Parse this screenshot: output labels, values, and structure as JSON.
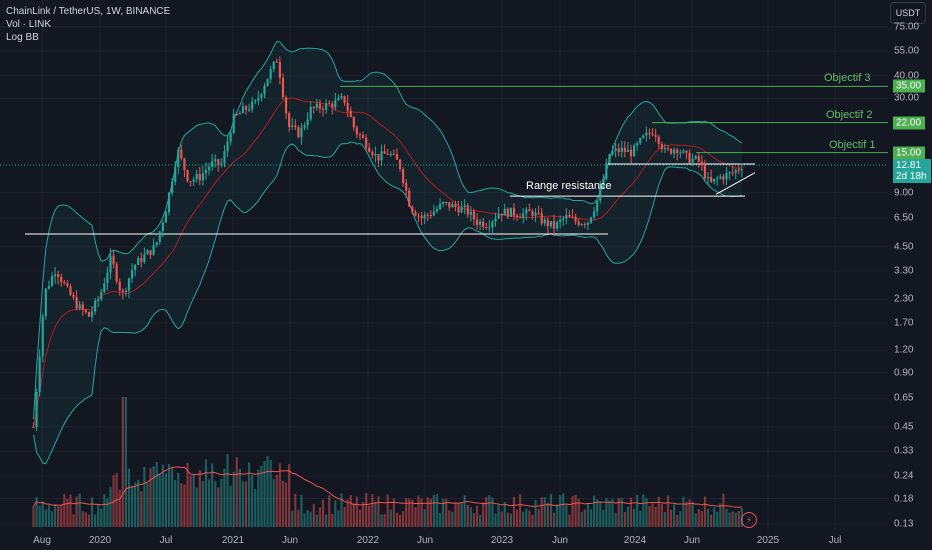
{
  "header": {
    "title": "ChainLink / TetherUS, 1W, BINANCE",
    "volume_label": "Vol · LINK",
    "indicator_label": "Log BB"
  },
  "currency_button": "USDT",
  "colors": {
    "background": "#131722",
    "up": "#26a69a",
    "down": "#ef5350",
    "band": "#26a69a",
    "basis": "#b71c1c",
    "objective": "#4caf50",
    "level_line": "#ffffff"
  },
  "icons": {
    "flash": "lightning-icon"
  },
  "chart_data": {
    "type": "candlestick",
    "y_scale": "log",
    "ylim": [
      0.12,
      80
    ],
    "y_ticks": [
      "75.00",
      "55.00",
      "40.00",
      "30.00",
      "9.00",
      "6.50",
      "4.50",
      "3.30",
      "2.30",
      "1.70",
      "1.20",
      "0.90",
      "0.65",
      "0.45",
      "0.33",
      "0.24",
      "0.18",
      "0.13"
    ],
    "x_ticks": [
      "Aug",
      "2020",
      "Jul",
      "2021",
      "Jun",
      "2022",
      "Jun",
      "2023",
      "Jun",
      "2024",
      "Jun",
      "2025",
      "Jul"
    ],
    "price_tags": [
      {
        "label": "35.00",
        "value": 35
      },
      {
        "label": "22.00",
        "value": 22
      },
      {
        "label": "15.00",
        "value": 15
      }
    ],
    "last_price": {
      "value": "12.81",
      "countdown": "2d 18h"
    },
    "annotations": [
      {
        "text": "Objectif 3",
        "level": 35
      },
      {
        "text": "Objectif 2",
        "level": 22
      },
      {
        "text": "Objectif 1",
        "level": 15
      },
      {
        "text": "Range resistance",
        "level": 8.6
      }
    ],
    "horizontal_levels": [
      5.3,
      8.6,
      12.8
    ],
    "price_path": [
      [
        "2019-07",
        0.45
      ],
      [
        "2019-08",
        2.5
      ],
      [
        "2019-09",
        3.4
      ],
      [
        "2019-10",
        2.6
      ],
      [
        "2019-11",
        2.1
      ],
      [
        "2019-12",
        1.85
      ],
      [
        "2020-01",
        2.4
      ],
      [
        "2020-02",
        3.9
      ],
      [
        "2020-03",
        2.4
      ],
      [
        "2020-04",
        3.5
      ],
      [
        "2020-05",
        4.0
      ],
      [
        "2020-06",
        4.5
      ],
      [
        "2020-07",
        7.5
      ],
      [
        "2020-08",
        15.5
      ],
      [
        "2020-09",
        10.5
      ],
      [
        "2020-10",
        11.0
      ],
      [
        "2020-11",
        13.0
      ],
      [
        "2020-12",
        13.0
      ],
      [
        "2021-01",
        23.0
      ],
      [
        "2021-02",
        26.0
      ],
      [
        "2021-03",
        28.0
      ],
      [
        "2021-04",
        38.0
      ],
      [
        "2021-05",
        50.0
      ],
      [
        "2021-06",
        21.0
      ],
      [
        "2021-07",
        19.0
      ],
      [
        "2021-08",
        26.0
      ],
      [
        "2021-09",
        27.0
      ],
      [
        "2021-10",
        28.0
      ],
      [
        "2021-11",
        30.0
      ],
      [
        "2021-12",
        20.0
      ],
      [
        "2022-01",
        17.0
      ],
      [
        "2022-02",
        14.0
      ],
      [
        "2022-03",
        15.0
      ],
      [
        "2022-04",
        13.0
      ],
      [
        "2022-05",
        7.5
      ],
      [
        "2022-06",
        6.5
      ],
      [
        "2022-07",
        7.0
      ],
      [
        "2022-08",
        7.8
      ],
      [
        "2022-09",
        7.5
      ],
      [
        "2022-10",
        7.2
      ],
      [
        "2022-11",
        6.2
      ],
      [
        "2022-12",
        6.0
      ],
      [
        "2023-01",
        7.0
      ],
      [
        "2023-02",
        7.0
      ],
      [
        "2023-03",
        6.8
      ],
      [
        "2023-04",
        7.0
      ],
      [
        "2023-05",
        6.2
      ],
      [
        "2023-06",
        5.8
      ],
      [
        "2023-07",
        6.6
      ],
      [
        "2023-08",
        6.2
      ],
      [
        "2023-09",
        6.2
      ],
      [
        "2023-10",
        8.5
      ],
      [
        "2023-11",
        15.0
      ],
      [
        "2023-12",
        15.5
      ],
      [
        "2024-01",
        15.0
      ],
      [
        "2024-02",
        18.0
      ],
      [
        "2024-03",
        20.0
      ],
      [
        "2024-04",
        15.0
      ],
      [
        "2024-05",
        16.0
      ],
      [
        "2024-06",
        14.0
      ],
      [
        "2024-07",
        13.5
      ],
      [
        "2024-08",
        10.0
      ],
      [
        "2024-09",
        11.0
      ],
      [
        "2024-10",
        11.5
      ],
      [
        "2024-11",
        12.8
      ]
    ]
  }
}
